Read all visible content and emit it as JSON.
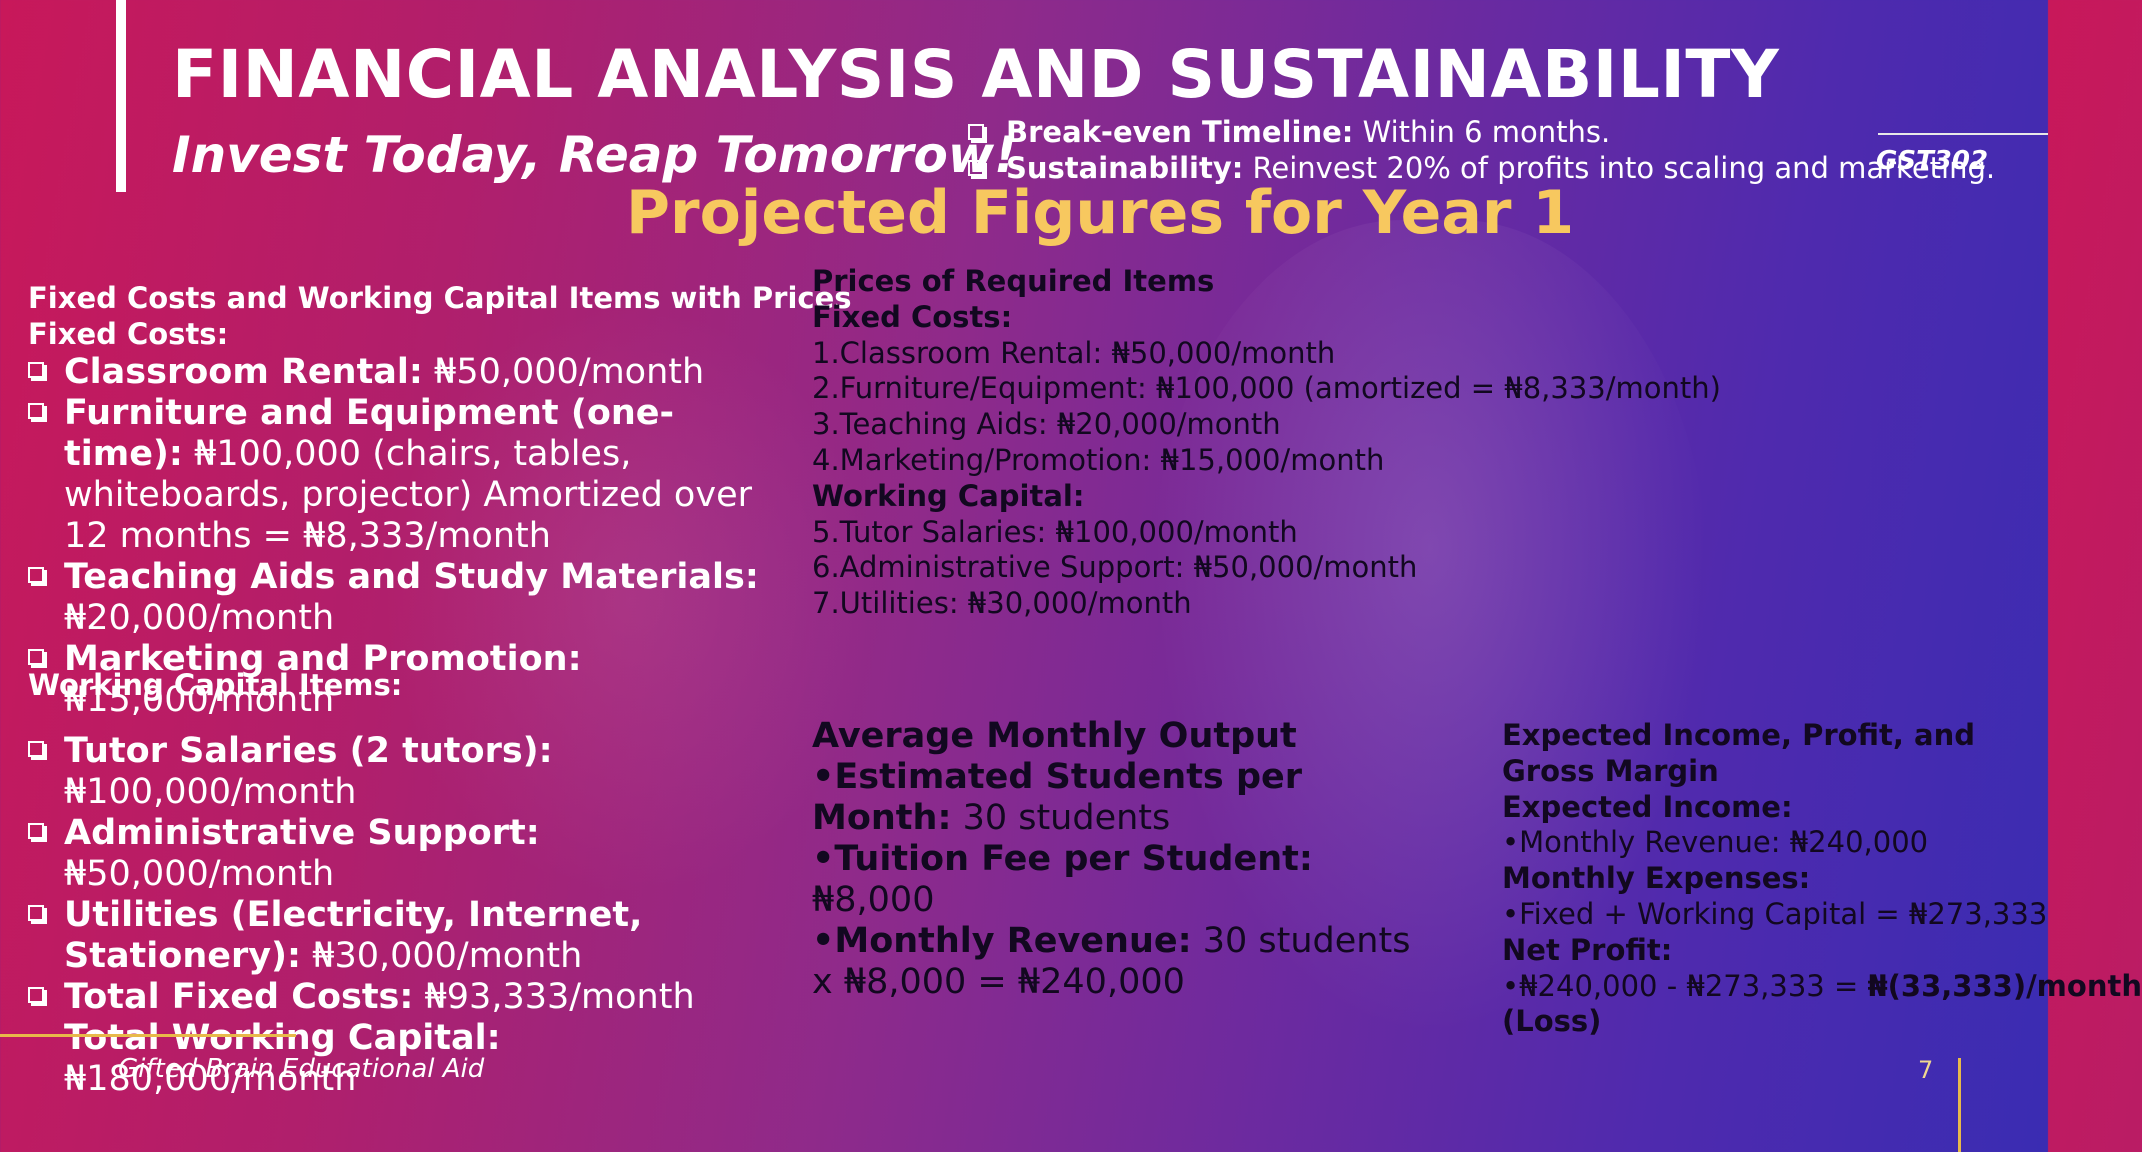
{
  "header": {
    "title": "FINANCIAL ANALYSIS AND SUSTAINABILITY",
    "subtitle": "Invest Today, Reap Tomorrow!",
    "bullets": [
      {
        "label": "Break-even Timeline:",
        "value": " Within 6 months."
      },
      {
        "label": "Sustainability:",
        "value": " Reinvest 20% of profits into scaling and marketing."
      }
    ],
    "course_code": "GST302"
  },
  "heading": "Projected Figures for Year 1",
  "left": {
    "section_title": "Fixed Costs and Working Capital Items with Prices",
    "fixed_title": "Fixed Costs:",
    "items": [
      {
        "label": "Classroom Rental:",
        "value": " ₦50,000/month"
      },
      {
        "label": "Furniture and Equipment (one-time):",
        "value": " ₦100,000 (chairs, tables, whiteboards, projector) Amortized over 12 months = ₦8,333/month"
      },
      {
        "label": "Teaching Aids and Study Materials:",
        "value": " ₦20,000/month"
      },
      {
        "label": "Marketing and Promotion:",
        "value": " ₦15,000/month"
      }
    ],
    "working_title": "Working Capital Items:",
    "working_items": [
      {
        "label": "Tutor Salaries (2 tutors):",
        "value": " ₦100,000/month"
      },
      {
        "label": "Administrative Support:",
        "value": " ₦50,000/month"
      },
      {
        "label": "Utilities (Electricity, Internet, Stationery):",
        "value": " ₦30,000/month"
      },
      {
        "label": "Total Fixed Costs:",
        "value": " ₦93,333/month"
      }
    ],
    "total_wc_label": "Total Working Capital:",
    "total_wc_value": " ₦180,000/month"
  },
  "middle": {
    "title": "Prices of Required Items",
    "fixed_title": "Fixed Costs:",
    "fixed_items": [
      "1.Classroom Rental: ₦50,000/month",
      "2.Furniture/Equipment: ₦100,000 (amortized = ₦8,333/month)",
      "3.Teaching Aids: ₦20,000/month",
      "4.Marketing/Promotion: ₦15,000/month"
    ],
    "wc_title": "Working Capital:",
    "wc_items": [
      "5.Tutor Salaries: ₦100,000/month",
      "6.Administrative Support: ₦50,000/month",
      "7.Utilities: ₦30,000/month"
    ]
  },
  "output": {
    "title": "Average Monthly Output",
    "items": [
      {
        "label": "•Estimated Students per Month:",
        "value": " 30 students"
      },
      {
        "label": "•Tuition Fee per Student:",
        "value": " ₦8,000"
      },
      {
        "label": "•Monthly Revenue:",
        "value": " 30 students x ₦8,000 = ₦240,000"
      }
    ]
  },
  "income": {
    "title": "Expected Income, Profit, and Gross Margin",
    "income_title": "Expected Income:",
    "income_line": "•Monthly Revenue: ₦240,000",
    "expenses_title": "Monthly Expenses:",
    "expenses_line": "•Fixed + Working Capital = ₦273,333",
    "profit_title": "Net Profit:",
    "profit_line_pre": "•₦240,000 - ₦273,333 = ",
    "profit_line_bold": "₦(33,333)/month",
    "profit_note": "(Loss)"
  },
  "footer": {
    "text": "Gifted Brain Educational Aid",
    "page_number": "7"
  }
}
